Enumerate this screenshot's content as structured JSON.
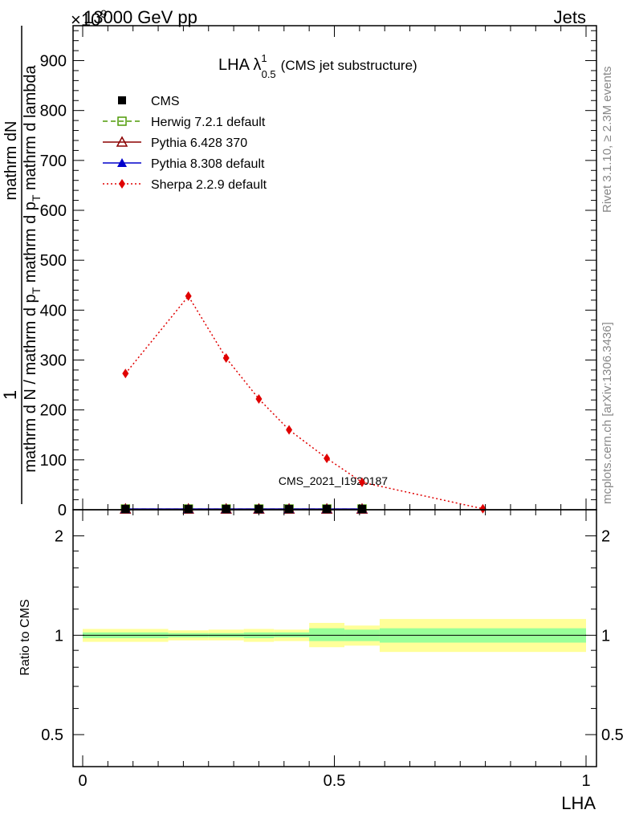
{
  "header": {
    "left": "13000 GeV pp",
    "right": "Jets",
    "exponent": "×10",
    "exponent_power": "9"
  },
  "side_text": {
    "rivet": "Rivet 3.1.10, ≥ 2.3M events",
    "mcplots": "mcplots.cern.ch [arXiv:1306.3436]"
  },
  "watermark": "CMS_2021_I1920187",
  "chart_data": [
    {
      "type": "line",
      "title": "LHA λ",
      "title_sup": "1",
      "title_sub": "0.5",
      "title_suffix": "(CMS jet substructure)",
      "ylabel_numerator": "1",
      "ylabel_line1": "mathrm d N / mathrm d p",
      "ylabel_line1_sub": "T",
      "ylabel_line2": " mathrm d p",
      "ylabel_line2_sub": "T",
      "ylabel_line3": " mathrm d lambda",
      "ylabel_denominator_top": "mathrm d",
      "ylabel_denominator_top2": "N",
      "xlim": [
        0,
        1
      ],
      "ylim": [
        0,
        970
      ],
      "yticks": [
        0,
        100,
        200,
        300,
        400,
        500,
        600,
        700,
        800,
        900
      ],
      "legend": [
        {
          "name": "CMS",
          "color": "#000000",
          "marker": "square-filled",
          "line": "none"
        },
        {
          "name": "Herwig 7.2.1 default",
          "color": "#4e9a06",
          "marker": "square-open",
          "line": "dashed"
        },
        {
          "name": "Pythia 6.428 370",
          "color": "#8b0000",
          "marker": "triangle-open",
          "line": "solid"
        },
        {
          "name": "Pythia 8.308 default",
          "color": "#0000cc",
          "marker": "triangle-filled",
          "line": "solid"
        },
        {
          "name": "Sherpa 2.2.9 default",
          "color": "#e00000",
          "marker": "diamond-filled",
          "line": "dotted"
        }
      ],
      "series": [
        {
          "name": "CMS",
          "x": [
            0.085,
            0.21,
            0.285,
            0.35,
            0.41,
            0.485,
            0.555
          ],
          "values": [
            1.5,
            1.5,
            1.5,
            1.5,
            1.5,
            1.5,
            1.5
          ]
        },
        {
          "name": "Herwig 7.2.1 default",
          "x": [
            0.085,
            0.21,
            0.285,
            0.35,
            0.41,
            0.485,
            0.555
          ],
          "values": [
            1.5,
            1.5,
            1.5,
            1.5,
            1.5,
            1.5,
            1.5
          ]
        },
        {
          "name": "Pythia 6.428 370",
          "x": [
            0.085,
            0.21,
            0.285,
            0.35,
            0.41,
            0.485,
            0.555
          ],
          "values": [
            1.5,
            1.5,
            1.5,
            1.5,
            1.5,
            1.5,
            1.5
          ]
        },
        {
          "name": "Pythia 8.308 default",
          "x": [
            0.085,
            0.21,
            0.285,
            0.35,
            0.41,
            0.485,
            0.555
          ],
          "values": [
            1.5,
            1.5,
            1.5,
            1.5,
            1.5,
            1.5,
            1.5
          ]
        },
        {
          "name": "Sherpa 2.2.9 default",
          "x": [
            0.085,
            0.21,
            0.285,
            0.35,
            0.41,
            0.485,
            0.555,
            0.795
          ],
          "values": [
            273,
            428,
            304,
            222,
            160,
            103,
            55,
            2
          ]
        }
      ]
    },
    {
      "type": "area",
      "ylabel": "Ratio to CMS",
      "xlabel": "LHA",
      "xlim": [
        0,
        1
      ],
      "ylim": [
        0.4,
        2.4
      ],
      "ylog": true,
      "xticks": [
        {
          "value": 0,
          "label": "0"
        },
        {
          "value": 0.5,
          "label": "0.5"
        },
        {
          "value": 1,
          "label": "1"
        }
      ],
      "yticks": [
        {
          "value": 0.5,
          "label": "0.5"
        },
        {
          "value": 1,
          "label": "1"
        },
        {
          "value": 2,
          "label": "2"
        }
      ],
      "band_colors": {
        "stat": "#99ff99",
        "total": "#ffff99"
      },
      "bins": [
        {
          "x0": 0,
          "x1": 0.17,
          "stat_lo": 0.98,
          "stat_hi": 1.02,
          "tot_lo": 0.955,
          "tot_hi": 1.045
        },
        {
          "x0": 0.17,
          "x1": 0.25,
          "stat_lo": 0.985,
          "stat_hi": 1.015,
          "tot_lo": 0.965,
          "tot_hi": 1.035
        },
        {
          "x0": 0.25,
          "x1": 0.32,
          "stat_lo": 0.985,
          "stat_hi": 1.015,
          "tot_lo": 0.965,
          "tot_hi": 1.04
        },
        {
          "x0": 0.32,
          "x1": 0.38,
          "stat_lo": 0.98,
          "stat_hi": 1.02,
          "tot_lo": 0.955,
          "tot_hi": 1.045
        },
        {
          "x0": 0.38,
          "x1": 0.45,
          "stat_lo": 0.985,
          "stat_hi": 1.02,
          "tot_lo": 0.96,
          "tot_hi": 1.04
        },
        {
          "x0": 0.45,
          "x1": 0.52,
          "stat_lo": 0.96,
          "stat_hi": 1.05,
          "tot_lo": 0.92,
          "tot_hi": 1.09
        },
        {
          "x0": 0.52,
          "x1": 0.59,
          "stat_lo": 0.96,
          "stat_hi": 1.04,
          "tot_lo": 0.93,
          "tot_hi": 1.07
        },
        {
          "x0": 0.59,
          "x1": 1.0,
          "stat_lo": 0.95,
          "stat_hi": 1.05,
          "tot_lo": 0.89,
          "tot_hi": 1.12
        }
      ],
      "reference_line": 1
    }
  ]
}
